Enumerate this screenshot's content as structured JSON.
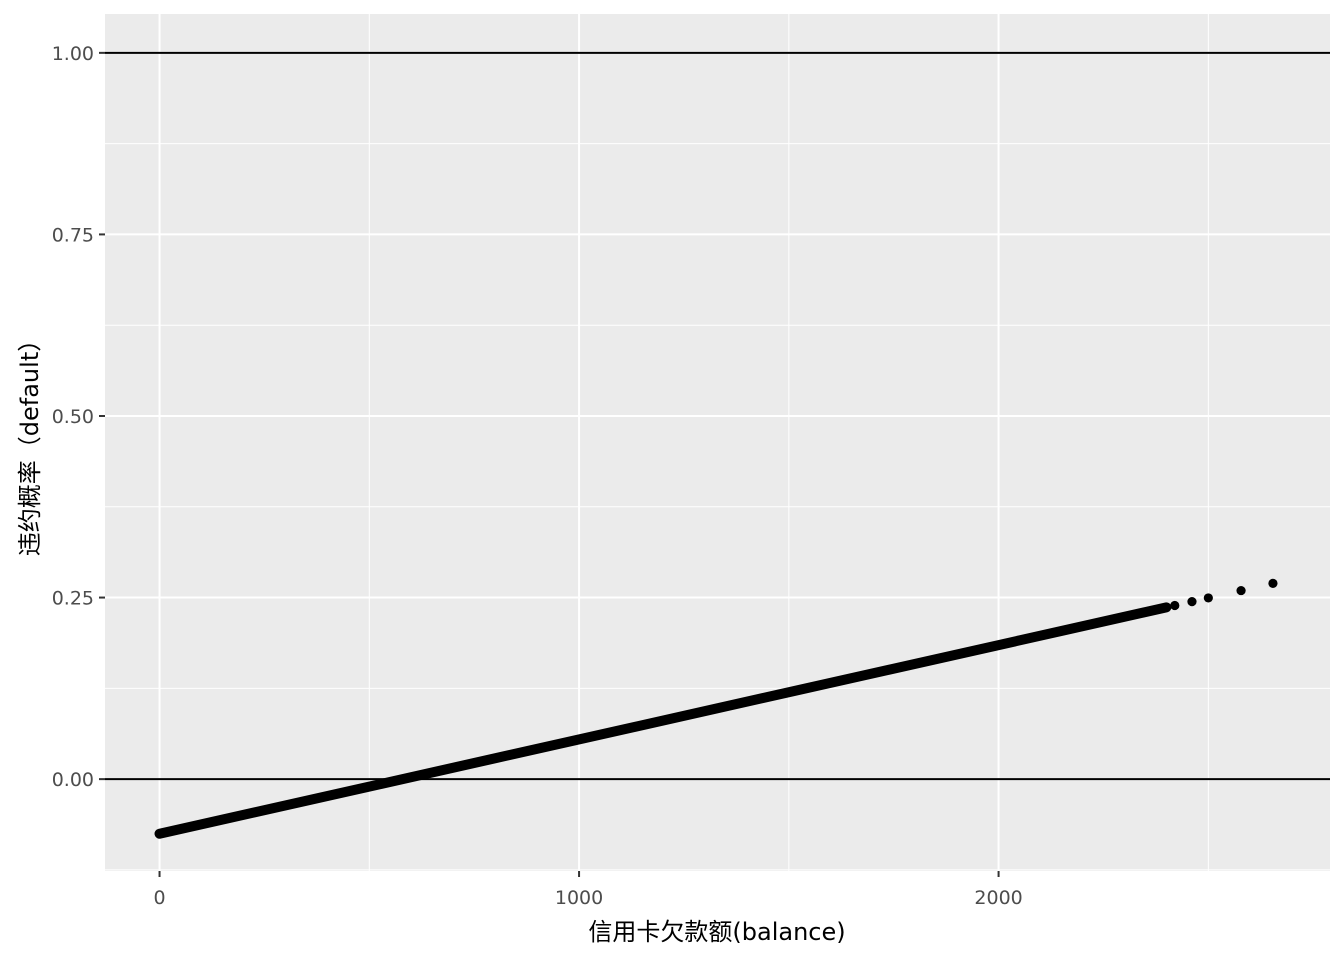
{
  "chart_data": {
    "type": "scatter",
    "title": "",
    "xlabel": "信用卡欠款额(balance)",
    "ylabel": "违约概率（default）",
    "xlim": [
      -130,
      2790
    ],
    "ylim": [
      -0.1265,
      1.0535
    ],
    "x_ticks": [
      0,
      1000,
      2000
    ],
    "x_tick_labels": [
      "0",
      "1000",
      "2000"
    ],
    "y_ticks": [
      0.0,
      0.25,
      0.5,
      0.75,
      1.0
    ],
    "y_tick_labels": [
      "0.00",
      "0.25",
      "0.50",
      "0.75",
      "1.00"
    ],
    "reference_lines_y": [
      0,
      1
    ],
    "grid": true,
    "panel_background": "#ebebeb",
    "grid_color": "#ffffff",
    "point_color": "#000000",
    "line_color": "#000000",
    "fit": {
      "intercept": -0.07519,
      "slope": 0.00012987
    },
    "series": [
      {
        "points": [
          [
            0,
            -0.0752
          ],
          [
            100,
            -0.0622
          ],
          [
            200,
            -0.0492
          ],
          [
            300,
            -0.0362
          ],
          [
            400,
            -0.0233
          ],
          [
            500,
            -0.0103
          ],
          [
            600,
            0.0027
          ],
          [
            700,
            0.0157
          ],
          [
            800,
            0.0287
          ],
          [
            900,
            0.0417
          ],
          [
            1000,
            0.0547
          ],
          [
            1100,
            0.0677
          ],
          [
            1200,
            0.0807
          ],
          [
            1300,
            0.0936
          ],
          [
            1400,
            0.1066
          ],
          [
            1500,
            0.1196
          ],
          [
            1600,
            0.1326
          ],
          [
            1700,
            0.1456
          ],
          [
            1800,
            0.1586
          ],
          [
            1900,
            0.1716
          ],
          [
            2000,
            0.1846
          ],
          [
            2050,
            0.1911
          ],
          [
            2100,
            0.1975
          ],
          [
            2150,
            0.204
          ],
          [
            2200,
            0.2105
          ],
          [
            2250,
            0.217
          ],
          [
            2300,
            0.2235
          ],
          [
            2330,
            0.2274
          ],
          [
            2360,
            0.2313
          ],
          [
            2390,
            0.2352
          ],
          [
            2420,
            0.2391
          ],
          [
            2461,
            0.2444
          ],
          [
            2500,
            0.2495
          ],
          [
            2578,
            0.2596
          ],
          [
            2654,
            0.2695
          ]
        ]
      }
    ]
  }
}
